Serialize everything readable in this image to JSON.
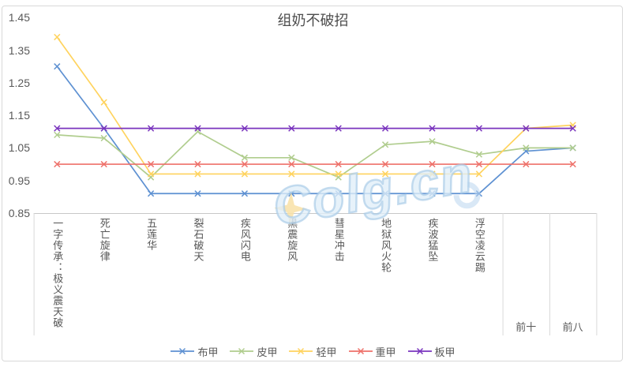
{
  "title": "组奶不破招",
  "watermark": {
    "text": "Colg.cn"
  },
  "colors": {
    "frame_border": "#d9d9d9",
    "axis_line": "#c8c8c8",
    "table_divider": "#d9d9d9",
    "text": "#595959",
    "title_text": "#4d4d4d"
  },
  "chart_data": {
    "type": "line",
    "title": "组奶不破招",
    "marker": "x",
    "grid": false,
    "legend_position": "bottom",
    "xlabel": "",
    "ylabel": "",
    "ylim": [
      0.85,
      1.45
    ],
    "ytick_step": 0.1,
    "yticks": [
      "1.45",
      "1.35",
      "1.25",
      "1.15",
      "1.05",
      "0.95",
      "0.85"
    ],
    "categories": [
      "一字传承：极义震天破",
      "死亡旋律",
      "五莲华",
      "裂石破天",
      "疾风闪电",
      "黑震旋风",
      "彗星冲击",
      "地狱风火轮",
      "疾波猛坠",
      "浮空凌云踢",
      "前十",
      "前八"
    ],
    "table_cell_categories": [
      "前十",
      "前八"
    ],
    "series": [
      {
        "name": "布甲",
        "color": "#5E91D2",
        "values": [
          1.3,
          1.11,
          0.91,
          0.91,
          0.91,
          0.91,
          0.91,
          0.91,
          0.91,
          0.91,
          1.04,
          1.05
        ]
      },
      {
        "name": "皮甲",
        "color": "#B0CD8E",
        "values": [
          1.09,
          1.08,
          0.96,
          1.1,
          1.02,
          1.02,
          0.96,
          1.06,
          1.07,
          1.03,
          1.05,
          1.05
        ]
      },
      {
        "name": "轻甲",
        "color": "#FFD35E",
        "values": [
          1.39,
          1.19,
          0.97,
          0.97,
          0.97,
          0.97,
          0.97,
          0.97,
          0.97,
          0.97,
          1.11,
          1.12
        ]
      },
      {
        "name": "重甲",
        "color": "#EE716A",
        "values": [
          1.0,
          1.0,
          1.0,
          1.0,
          1.0,
          1.0,
          1.0,
          1.0,
          1.0,
          1.0,
          1.0,
          1.0
        ]
      },
      {
        "name": "板甲",
        "color": "#7A35BE",
        "values": [
          1.11,
          1.11,
          1.11,
          1.11,
          1.11,
          1.11,
          1.11,
          1.11,
          1.11,
          1.11,
          1.11,
          1.11
        ]
      }
    ]
  }
}
